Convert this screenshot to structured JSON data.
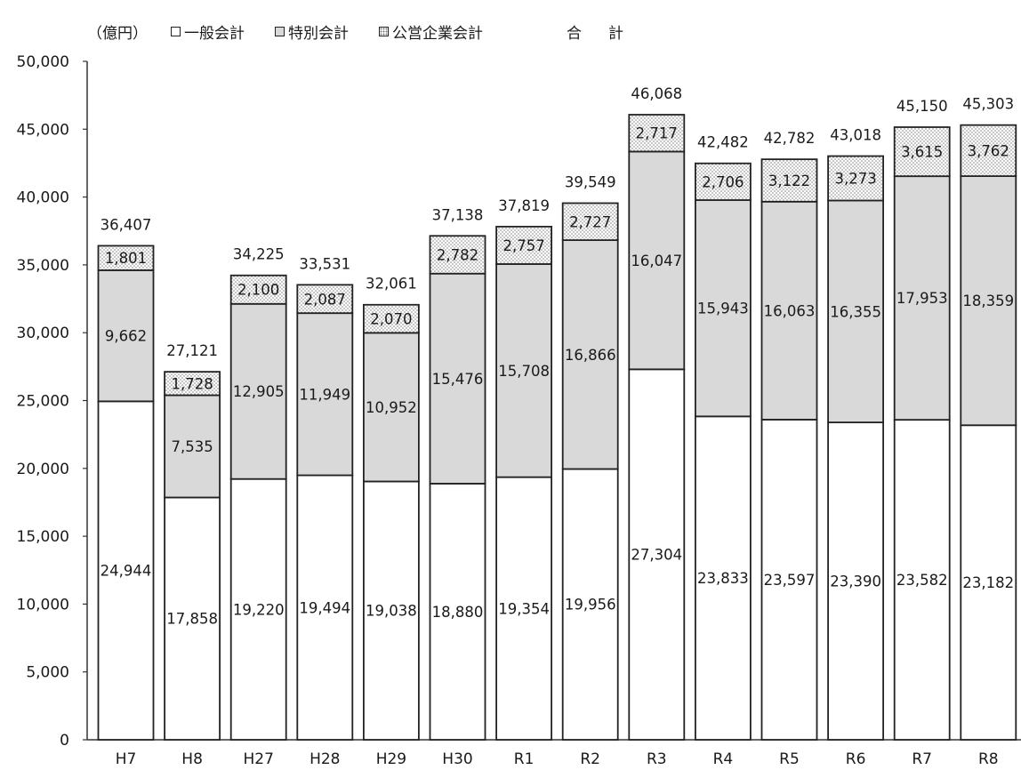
{
  "chart_data": {
    "type": "bar",
    "stacked": true,
    "unit_label": "（億円）",
    "legend": {
      "general": "一般会計",
      "special": "特別会計",
      "enterprise": "公営企業会計",
      "total": "合計"
    },
    "categories": [
      "H7",
      "H8",
      "H27",
      "H28",
      "H29",
      "H30",
      "R1",
      "R2",
      "R3",
      "R4",
      "R5",
      "R6",
      "R7",
      "R8"
    ],
    "series": [
      {
        "name": "一般会計",
        "values": [
          24944,
          17858,
          19220,
          19494,
          19038,
          18880,
          19354,
          19956,
          27304,
          23833,
          23597,
          23390,
          23582,
          23182
        ]
      },
      {
        "name": "特別会計",
        "values": [
          9662,
          7535,
          12905,
          11949,
          10952,
          15476,
          15708,
          16866,
          16047,
          15943,
          16063,
          16355,
          17953,
          18359
        ]
      },
      {
        "name": "公営企業会計",
        "values": [
          1801,
          1728,
          2100,
          2087,
          2070,
          2782,
          2757,
          2727,
          2717,
          2706,
          3122,
          3273,
          3615,
          3762
        ]
      }
    ],
    "totals": [
      36407,
      27121,
      34225,
      33531,
      32061,
      37138,
      37819,
      39549,
      46068,
      42482,
      42782,
      43018,
      45150,
      45303
    ],
    "ylim": [
      0,
      50000
    ],
    "yticks": [
      0,
      5000,
      10000,
      15000,
      20000,
      25000,
      30000,
      35000,
      40000,
      45000,
      50000
    ],
    "ytick_labels": [
      "0",
      "5,000",
      "10,000",
      "15,000",
      "20,000",
      "25,000",
      "30,000",
      "35,000",
      "40,000",
      "45,000",
      "50,000"
    ],
    "colors": {
      "general": "#ffffff",
      "special": "#d9d9d9",
      "enterprise_dots": "#7a7a7a",
      "outline": "#222222"
    }
  }
}
